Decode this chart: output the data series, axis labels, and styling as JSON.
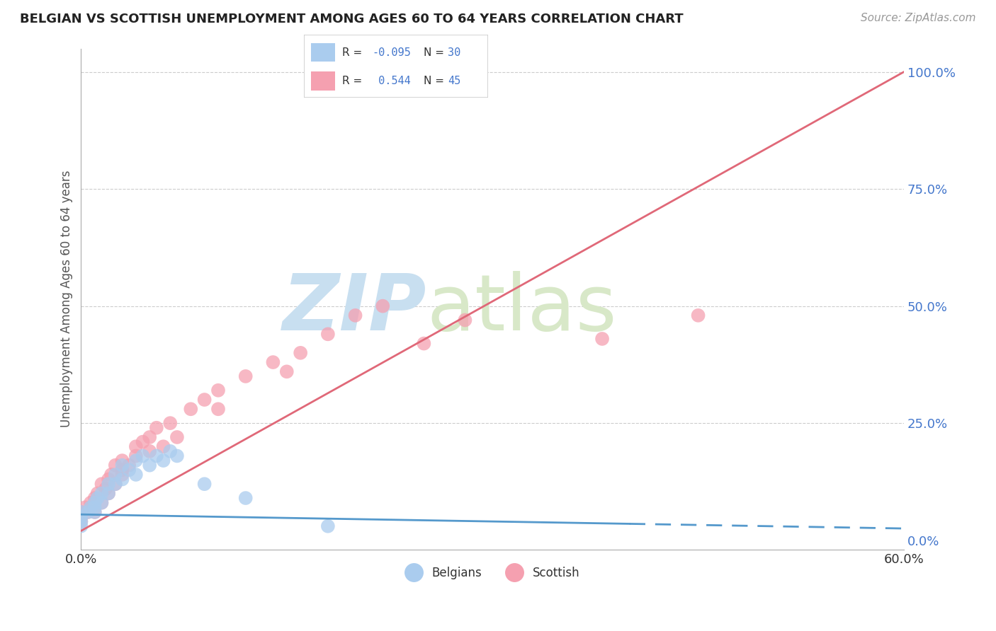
{
  "title": "BELGIAN VS SCOTTISH UNEMPLOYMENT AMONG AGES 60 TO 64 YEARS CORRELATION CHART",
  "source_text": "Source: ZipAtlas.com",
  "ylabel": "Unemployment Among Ages 60 to 64 years",
  "xlim": [
    0.0,
    0.6
  ],
  "ylim": [
    -0.02,
    1.05
  ],
  "xtick_positions": [
    0.0,
    0.6
  ],
  "xticklabels": [
    "0.0%",
    "60.0%"
  ],
  "yticks": [
    0.0,
    0.25,
    0.5,
    0.75,
    1.0
  ],
  "yticklabels": [
    "0.0%",
    "25.0%",
    "50.0%",
    "75.0%",
    "100.0%"
  ],
  "legend_R_blue": "-0.095",
  "legend_N_blue": "30",
  "legend_R_pink": "0.544",
  "legend_N_pink": "45",
  "blue_color": "#aaccee",
  "pink_color": "#f5a0b0",
  "blue_line_color": "#5599cc",
  "pink_line_color": "#e06878",
  "watermark_zip": "ZIP",
  "watermark_atlas": "atlas",
  "watermark_color_zip": "#c8dff0",
  "watermark_color_atlas": "#d8e8c8",
  "pink_line_x0": 0.0,
  "pink_line_y0": 0.02,
  "pink_line_x1": 0.6,
  "pink_line_y1": 1.0,
  "blue_line_x0": 0.0,
  "blue_line_y0": 0.055,
  "blue_line_x1": 0.4,
  "blue_line_y1": 0.035,
  "blue_line_dash_x0": 0.4,
  "blue_line_dash_x1": 0.6,
  "belgians_x": [
    0.0,
    0.0,
    0.0,
    0.0,
    0.005,
    0.007,
    0.01,
    0.01,
    0.01,
    0.012,
    0.015,
    0.015,
    0.02,
    0.02,
    0.025,
    0.025,
    0.03,
    0.03,
    0.035,
    0.04,
    0.04,
    0.045,
    0.05,
    0.055,
    0.06,
    0.065,
    0.07,
    0.09,
    0.12,
    0.18
  ],
  "belgians_y": [
    0.05,
    0.04,
    0.03,
    0.06,
    0.06,
    0.07,
    0.07,
    0.08,
    0.06,
    0.09,
    0.1,
    0.08,
    0.1,
    0.12,
    0.12,
    0.14,
    0.13,
    0.16,
    0.15,
    0.17,
    0.14,
    0.18,
    0.16,
    0.18,
    0.17,
    0.19,
    0.18,
    0.12,
    0.09,
    0.03
  ],
  "scottish_x": [
    0.0,
    0.0,
    0.0,
    0.003,
    0.005,
    0.007,
    0.01,
    0.01,
    0.012,
    0.015,
    0.015,
    0.018,
    0.02,
    0.02,
    0.022,
    0.025,
    0.025,
    0.03,
    0.03,
    0.03,
    0.035,
    0.04,
    0.04,
    0.045,
    0.05,
    0.05,
    0.055,
    0.06,
    0.065,
    0.07,
    0.08,
    0.09,
    0.1,
    0.1,
    0.12,
    0.14,
    0.15,
    0.16,
    0.18,
    0.2,
    0.22,
    0.25,
    0.28,
    0.38,
    0.45
  ],
  "scottish_y": [
    0.05,
    0.04,
    0.06,
    0.07,
    0.06,
    0.08,
    0.06,
    0.09,
    0.1,
    0.08,
    0.12,
    0.11,
    0.13,
    0.1,
    0.14,
    0.12,
    0.16,
    0.14,
    0.17,
    0.15,
    0.16,
    0.18,
    0.2,
    0.21,
    0.19,
    0.22,
    0.24,
    0.2,
    0.25,
    0.22,
    0.28,
    0.3,
    0.32,
    0.28,
    0.35,
    0.38,
    0.36,
    0.4,
    0.44,
    0.48,
    0.5,
    0.42,
    0.47,
    0.43,
    0.48
  ]
}
